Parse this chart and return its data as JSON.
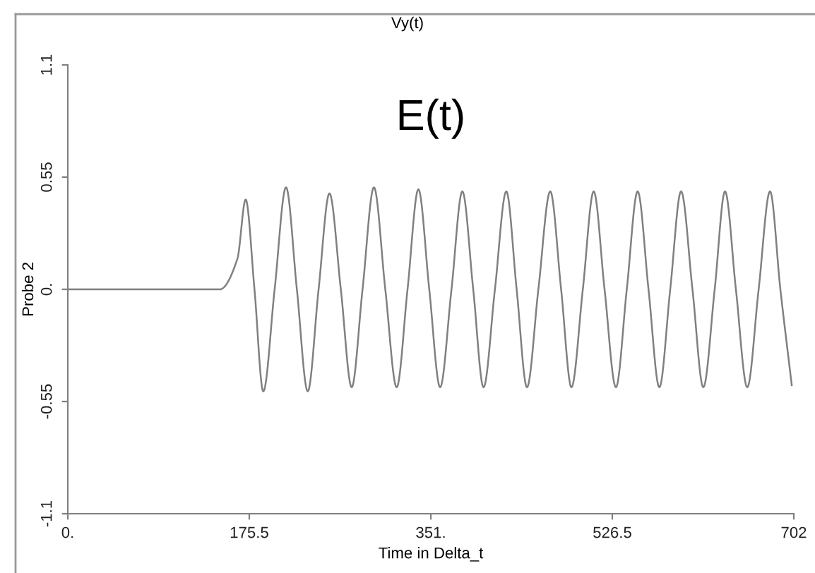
{
  "chart_data": {
    "type": "line",
    "title": "Vy(t)",
    "xlabel": "Time in Delta_t",
    "ylabel": "Probe 2",
    "annotations": [
      "E(t)"
    ],
    "xlim": [
      0,
      702
    ],
    "ylim": [
      -1.1,
      1.1
    ],
    "xticks": [
      {
        "value": 0,
        "label": "0."
      },
      175.5,
      {
        "value": 351,
        "label": "351."
      },
      526.5,
      702
    ],
    "yticks": [
      -1.1,
      -0.55,
      {
        "value": 0,
        "label": "0."
      },
      0.55,
      1.1
    ],
    "grid": false,
    "legend": false,
    "marker": "none",
    "line_style": "solid",
    "series": [
      {
        "color": "#808080",
        "x": [
          0,
          147,
          164,
          172,
          180.5,
          189,
          200,
          211,
          221.5,
          232,
          242.5,
          253,
          264,
          274.5,
          285,
          296,
          307,
          318,
          328.5,
          339,
          349.5,
          360,
          371,
          381.5,
          392,
          402,
          413,
          424,
          434,
          444,
          455,
          466.5,
          477,
          487,
          498,
          508.5,
          519,
          530,
          540.5,
          551,
          561.5,
          572,
          582.5,
          593,
          604,
          614.5,
          625.5,
          635.5,
          646,
          657,
          668,
          679,
          689,
          700
        ],
        "values": [
          0,
          0,
          0.15,
          0.44,
          0,
          -0.5,
          0,
          0.5,
          0,
          -0.5,
          0,
          0.47,
          0,
          -0.48,
          0,
          0.5,
          0,
          -0.48,
          0,
          0.49,
          0,
          -0.48,
          0,
          0.48,
          0,
          -0.48,
          0,
          0.48,
          0,
          -0.48,
          0,
          0.48,
          0,
          -0.48,
          0,
          0.48,
          0,
          -0.48,
          0,
          0.48,
          0,
          -0.48,
          0,
          0.48,
          0,
          -0.48,
          0,
          0.48,
          0,
          -0.48,
          0,
          0.48,
          0,
          -0.47
        ]
      }
    ]
  }
}
